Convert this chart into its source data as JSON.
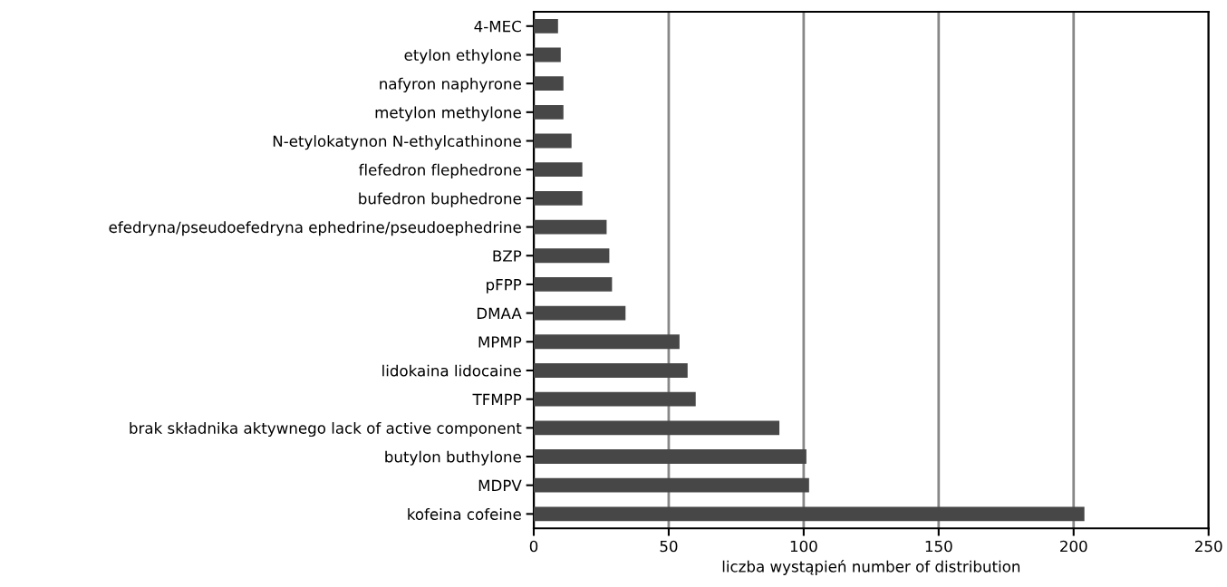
{
  "chart_data": {
    "type": "bar",
    "orientation": "horizontal",
    "categories": [
      "4-MEC",
      "etylon ethylone",
      "nafyron naphyrone",
      "metylon methylone",
      "N-etylokatynon N-ethylcathinone",
      "flefedron flephedrone",
      "bufedron buphedrone",
      "efedryna/pseudoefedryna ephedrine/pseudoephedrine",
      "BZP",
      "pFPP",
      "DMAA",
      "MPMP",
      "lidokaina lidocaine",
      "TFMPP",
      "brak składnika aktywnego lack of active component",
      "butylon buthylone",
      "MDPV",
      "kofeina cofeine"
    ],
    "values": [
      9,
      10,
      11,
      11,
      14,
      18,
      18,
      27,
      28,
      29,
      34,
      54,
      57,
      60,
      91,
      101,
      102,
      204
    ],
    "color": "#474747",
    "xlim": [
      0,
      250
    ],
    "xticks": [
      0,
      50,
      100,
      150,
      200,
      250
    ],
    "xlabel": "liczba wystąpień number of distribution",
    "grid": "x"
  }
}
